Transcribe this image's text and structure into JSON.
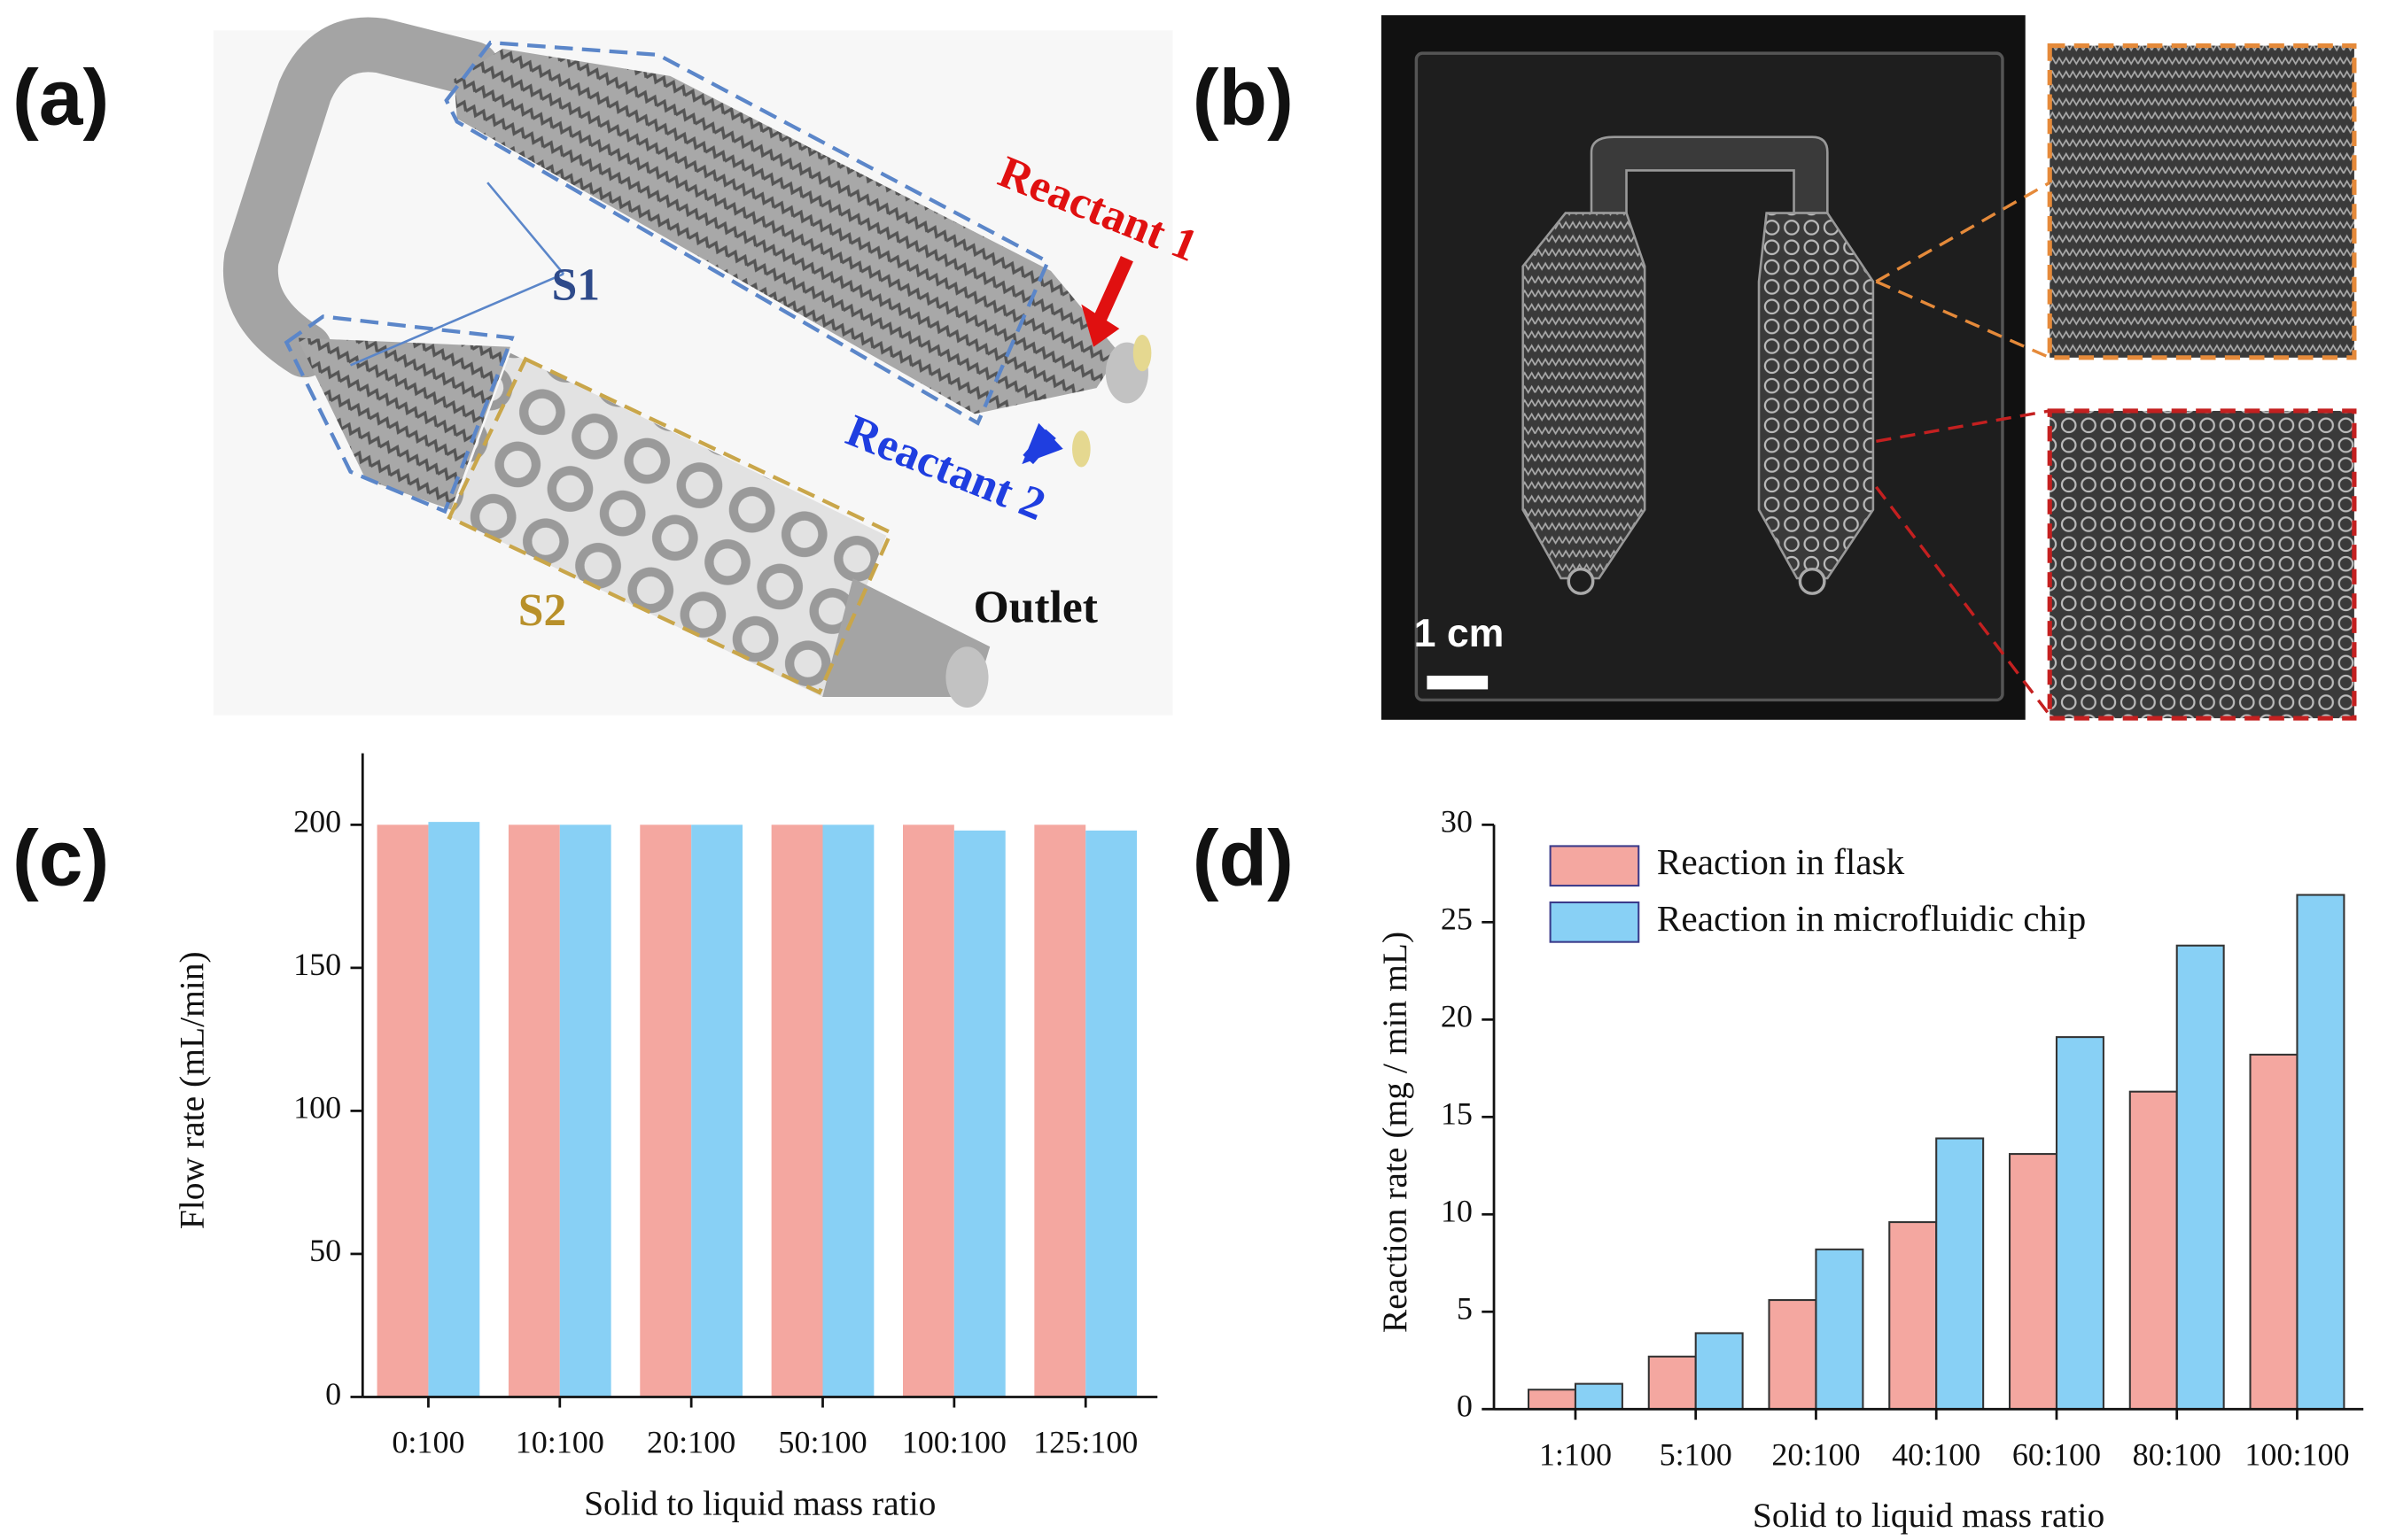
{
  "illustrations": {
    "a": {
      "label": "(a)",
      "s1": "S1",
      "s2": "S2",
      "reactant_1": "Reactant 1",
      "reactant_2": "Reactant 2",
      "outlet": "Outlet"
    },
    "b": {
      "label": "(b)",
      "scale": "1 cm"
    }
  },
  "chart_data": [
    {
      "type": "bar",
      "panel": "(c)",
      "xlabel": "Solid to liquid mass ratio",
      "ylabel": "Flow rate (mL/min)",
      "categories": [
        "0:100",
        "10:100",
        "20:100",
        "50:100",
        "100:100",
        "125:100"
      ],
      "series": [
        {
          "color": "#f4a7a0",
          "values": [
            200,
            200,
            200,
            200,
            200,
            200
          ]
        },
        {
          "color": "#88d0f5",
          "values": [
            201,
            200,
            200,
            200,
            198,
            198
          ]
        }
      ],
      "ylim": [
        0,
        225
      ],
      "yticks": [
        0,
        50,
        100,
        150,
        200
      ]
    },
    {
      "type": "bar",
      "panel": "(d)",
      "xlabel": "Solid to liquid mass ratio",
      "ylabel": "Reaction rate (mg / min mL)",
      "categories": [
        "1:100",
        "5:100",
        "20:100",
        "40:100",
        "60:100",
        "80:100",
        "100:100"
      ],
      "series": [
        {
          "name": "Reaction in flask",
          "color": "#f4a7a0",
          "values": [
            1.0,
            2.7,
            5.6,
            9.6,
            13.1,
            16.3,
            18.2
          ]
        },
        {
          "name": "Reaction in microfluidic chip",
          "color": "#88d0f5",
          "values": [
            1.3,
            3.9,
            8.2,
            13.9,
            19.1,
            23.8,
            26.4
          ]
        }
      ],
      "ylim": [
        0,
        30
      ],
      "yticks": [
        0,
        5,
        10,
        15,
        20,
        25,
        30
      ],
      "legend": "upper left"
    }
  ]
}
